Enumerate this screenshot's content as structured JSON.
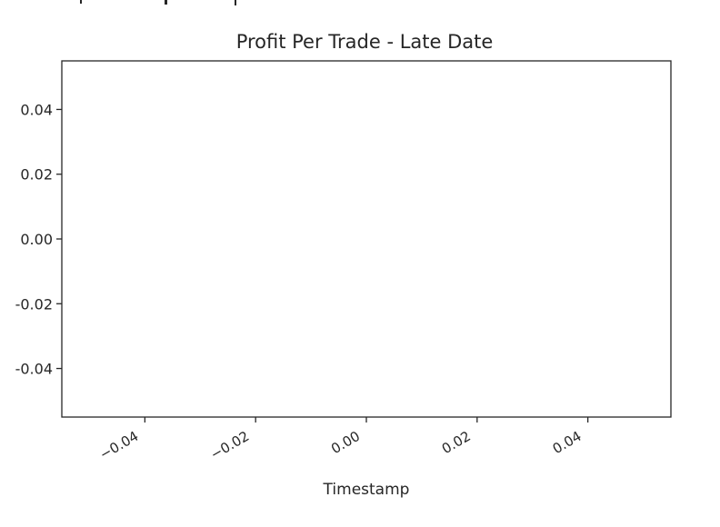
{
  "chart_data": {
    "type": "line",
    "title": "Profit Per Trade - Late Date",
    "xlabel": "Timestamp",
    "ylabel": "",
    "xlim": [
      -0.055,
      0.055
    ],
    "ylim": [
      -0.055,
      0.055
    ],
    "x_ticks": [
      -0.04,
      -0.02,
      0.0,
      0.02,
      0.04
    ],
    "x_tick_labels": [
      "−0.04",
      "−0.02",
      "0.00",
      "0.02",
      "0.04"
    ],
    "y_ticks": [
      -0.04,
      -0.02,
      0.0,
      0.02,
      0.04
    ],
    "y_tick_labels": [
      "-0.04",
      "-0.02",
      "0.00",
      "0.02",
      "0.04"
    ],
    "series": [],
    "grid": false,
    "legend": "none"
  }
}
